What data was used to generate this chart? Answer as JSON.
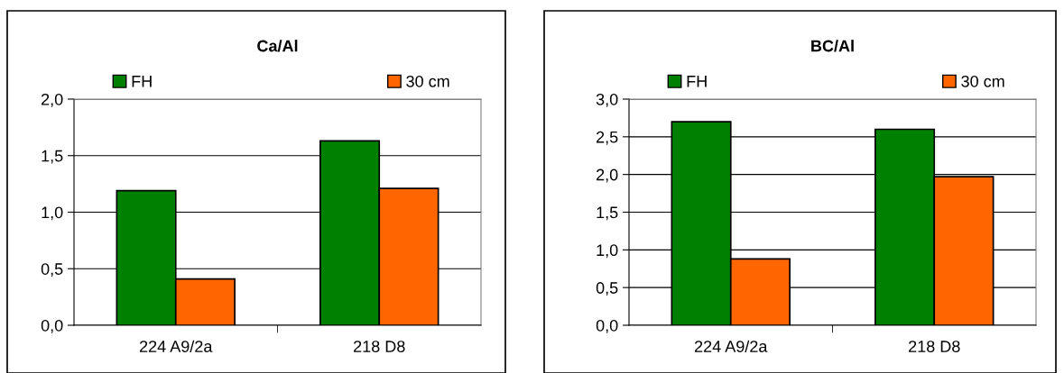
{
  "chart_data": [
    {
      "type": "bar",
      "title": "Ca/Al",
      "categories": [
        "224 A9/2a",
        "218 D8"
      ],
      "series": [
        {
          "name": "FH",
          "color": "#008000",
          "values": [
            1.19,
            1.63
          ]
        },
        {
          "name": "30 cm",
          "color": "#ff6600",
          "values": [
            0.41,
            1.21
          ]
        }
      ],
      "ylim": [
        0,
        2
      ],
      "yticks": [
        {
          "value": 0,
          "label": "0,0"
        },
        {
          "value": 0.5,
          "label": "0,5"
        },
        {
          "value": 1,
          "label": "1,0"
        },
        {
          "value": 1.5,
          "label": "1,5"
        },
        {
          "value": 2,
          "label": "2,0"
        }
      ],
      "grid": "y",
      "legend": "top"
    },
    {
      "type": "bar",
      "title": "BC/Al",
      "categories": [
        "224 A9/2a",
        "218 D8"
      ],
      "series": [
        {
          "name": "FH",
          "color": "#008000",
          "values": [
            2.7,
            2.6
          ]
        },
        {
          "name": "30 cm",
          "color": "#ff6600",
          "values": [
            0.88,
            1.97
          ]
        }
      ],
      "ylim": [
        0,
        3
      ],
      "yticks": [
        {
          "value": 0,
          "label": "0,0"
        },
        {
          "value": 0.5,
          "label": "0,5"
        },
        {
          "value": 1,
          "label": "1,0"
        },
        {
          "value": 1.5,
          "label": "1,5"
        },
        {
          "value": 2,
          "label": "2,0"
        },
        {
          "value": 2.5,
          "label": "2,5"
        },
        {
          "value": 3,
          "label": "3,0"
        }
      ],
      "grid": "y",
      "legend": "top"
    }
  ]
}
